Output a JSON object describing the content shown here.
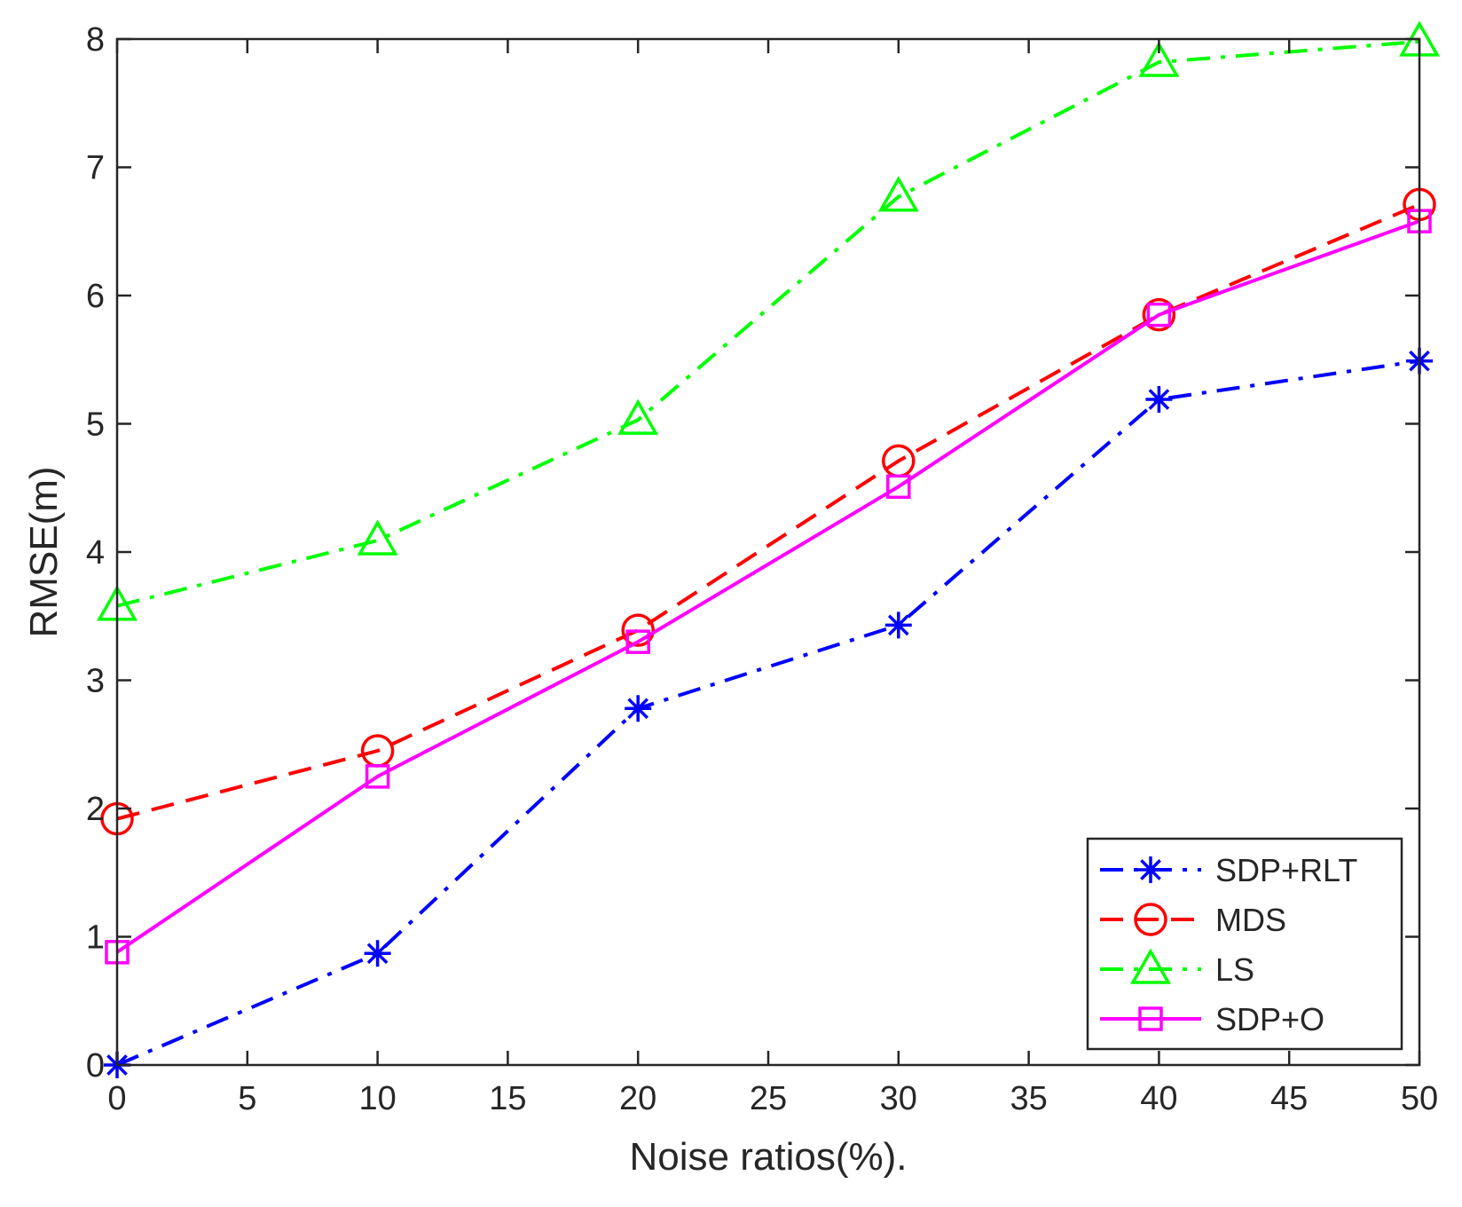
{
  "chart_data": {
    "type": "line",
    "title": "",
    "xlabel": "Noise ratios(%).",
    "ylabel": "RMSE(m)",
    "xlim": [
      0,
      50
    ],
    "ylim": [
      0,
      8
    ],
    "xticks": [
      "0",
      "5",
      "10",
      "15",
      "20",
      "25",
      "30",
      "35",
      "40",
      "45",
      "50"
    ],
    "yticks": [
      "0",
      "1",
      "2",
      "3",
      "4",
      "5",
      "6",
      "7",
      "8"
    ],
    "x": [
      0,
      10,
      20,
      30,
      40,
      50
    ],
    "grid": false,
    "legend_position": "bottom-right",
    "series": [
      {
        "name": "SDP+RLT",
        "values": [
          0.0,
          0.87,
          2.78,
          3.43,
          5.19,
          5.49
        ],
        "color": "#0000ff",
        "line_style": "dash-dot",
        "marker": "asterisk"
      },
      {
        "name": "MDS",
        "values": [
          1.92,
          2.45,
          3.39,
          4.71,
          5.85,
          6.71
        ],
        "color": "#ff0000",
        "line_style": "dashed",
        "marker": "circle"
      },
      {
        "name": "LS",
        "values": [
          3.58,
          4.09,
          5.03,
          6.77,
          7.82,
          7.98
        ],
        "color": "#00ff00",
        "line_style": "dash-dot",
        "marker": "triangle"
      },
      {
        "name": "SDP+O",
        "values": [
          0.88,
          2.25,
          3.3,
          4.51,
          5.85,
          6.58
        ],
        "color": "#ff00ff",
        "line_style": "solid",
        "marker": "square"
      }
    ]
  }
}
